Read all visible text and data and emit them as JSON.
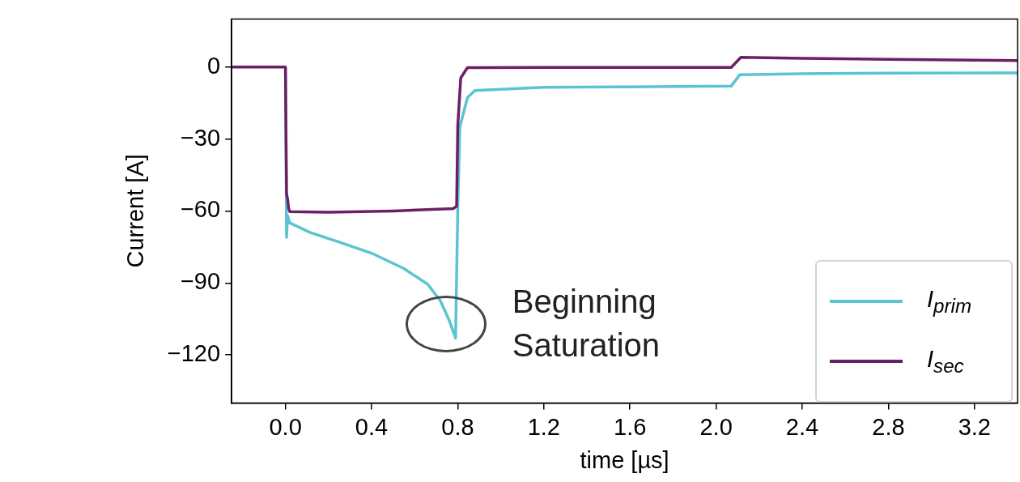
{
  "chart_data": {
    "type": "line",
    "xlabel": "time [µs]",
    "ylabel": "Current [A]",
    "xlim": [
      -0.25,
      3.4
    ],
    "xticks": [
      {
        "value": 0,
        "label": "0.0"
      },
      0.4,
      0.8,
      1.2,
      1.6,
      {
        "value": 2,
        "label": "2.0"
      },
      2.4,
      2.8,
      3.2
    ],
    "ylim": [
      -140,
      20
    ],
    "yticks": [
      -120,
      -90,
      -60,
      -30,
      0
    ],
    "grid": false,
    "legend": "bottom right",
    "marker": "none",
    "line_style": "solid",
    "annotations": [
      {
        "text": "Beginning\nSaturation",
        "x": 0.79,
        "y": -113
      }
    ],
    "series": [
      {
        "name": "I$_{prim}$",
        "color": "#5bc4d1",
        "x": [
          0,
          0.005,
          0.01,
          0.02,
          0.116,
          0.25,
          0.4,
          0.55,
          0.66,
          0.72,
          0.76,
          0.79,
          0.8,
          0.81,
          0.845,
          0.88,
          1.2,
          1.6,
          2.07,
          2.11,
          2.4,
          2.8,
          3.4
        ],
        "values": [
          0,
          -71,
          -62,
          -65,
          -69,
          -73,
          -77.6,
          -84,
          -90.5,
          -97.5,
          -105.5,
          -113,
          -60,
          -25,
          -12.8,
          -9.8,
          -8.5,
          -8.3,
          -8,
          -3.2,
          -2.8,
          -2.6,
          -2.5
        ]
      },
      {
        "name": "I$_{sec}$",
        "color": "#6d1f66",
        "x": [
          -0.25,
          -0.1,
          0,
          0.005,
          0.01,
          0.015,
          0.02,
          0.2,
          0.5,
          0.78,
          0.795,
          0.8,
          0.814,
          0.845,
          1.2,
          1.6,
          2.07,
          2.115,
          2.4,
          2.8,
          3.4
        ],
        "values": [
          0,
          0,
          0,
          -53,
          -55,
          -59,
          -60.3,
          -60.5,
          -60,
          -59,
          -58,
          -25,
          -4.6,
          -0.3,
          -0.2,
          -0.2,
          -0.2,
          4,
          3.6,
          3.2,
          2.7
        ]
      }
    ]
  }
}
